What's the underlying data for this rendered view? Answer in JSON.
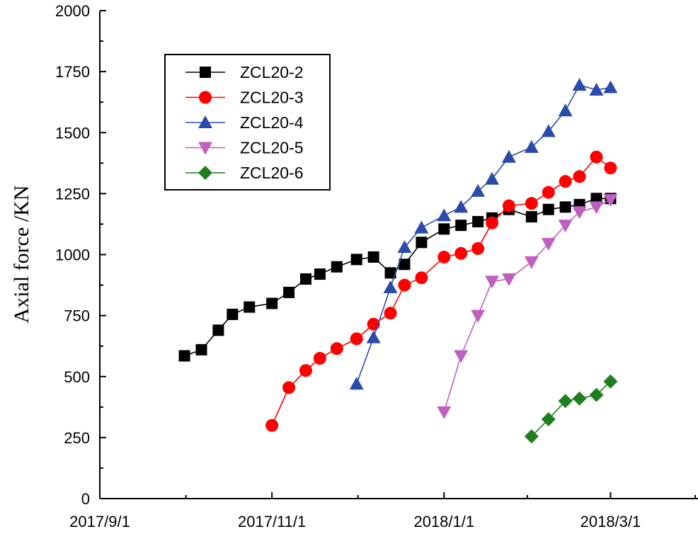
{
  "chart_data": {
    "type": "line",
    "title": "",
    "xlabel": "",
    "ylabel": "Axial force /KN",
    "x_is_date": true,
    "xlim": [
      "2017-09-01",
      "2018-04-01"
    ],
    "ylim": [
      0,
      2000
    ],
    "x_ticks": [
      {
        "date": "2017-09-01",
        "label": "2017/9/1"
      },
      {
        "date": "2017-11-01",
        "label": "2017/11/1"
      },
      {
        "date": "2018-01-01",
        "label": "2018/1/1"
      },
      {
        "date": "2018-03-01",
        "label": "2018/3/1"
      }
    ],
    "y_ticks": [
      0,
      250,
      500,
      750,
      1000,
      1250,
      1500,
      1750,
      2000
    ],
    "y_tick_labels": [
      "0",
      "250",
      "500",
      "750",
      "1000",
      "1250",
      "1500",
      "1750",
      "2000"
    ],
    "grid": false,
    "legend_position": "top-left",
    "series": [
      {
        "name": "ZCL20-2",
        "color": "#000000",
        "marker": "square",
        "x": [
          "2017-10-01",
          "2017-10-07",
          "2017-10-13",
          "2017-10-18",
          "2017-10-24",
          "2017-11-01",
          "2017-11-07",
          "2017-11-13",
          "2017-11-18",
          "2017-11-24",
          "2017-12-01",
          "2017-12-07",
          "2017-12-13",
          "2017-12-18",
          "2017-12-24",
          "2018-01-01",
          "2018-01-07",
          "2018-01-13",
          "2018-01-18",
          "2018-01-24",
          "2018-02-01",
          "2018-02-07",
          "2018-02-13",
          "2018-02-18",
          "2018-02-24",
          "2018-03-01"
        ],
        "values": [
          585,
          610,
          690,
          755,
          785,
          800,
          845,
          900,
          920,
          950,
          980,
          990,
          925,
          960,
          1050,
          1105,
          1120,
          1135,
          1150,
          1185,
          1155,
          1185,
          1195,
          1205,
          1230,
          1230
        ]
      },
      {
        "name": "ZCL20-3",
        "color": "#ff0000",
        "marker": "circle",
        "x": [
          "2017-11-01",
          "2017-11-07",
          "2017-11-13",
          "2017-11-18",
          "2017-11-24",
          "2017-12-01",
          "2017-12-07",
          "2017-12-13",
          "2017-12-18",
          "2017-12-24",
          "2018-01-01",
          "2018-01-07",
          "2018-01-13",
          "2018-01-18",
          "2018-01-24",
          "2018-02-01",
          "2018-02-07",
          "2018-02-13",
          "2018-02-18",
          "2018-02-24",
          "2018-03-01"
        ],
        "values": [
          300,
          455,
          525,
          575,
          615,
          655,
          715,
          760,
          875,
          905,
          990,
          1005,
          1025,
          1130,
          1200,
          1210,
          1255,
          1300,
          1320,
          1400,
          1355
        ]
      },
      {
        "name": "ZCL20-4",
        "color": "#2b4bab",
        "marker": "triangle-up",
        "x": [
          "2017-12-01",
          "2017-12-07",
          "2017-12-13",
          "2017-12-18",
          "2017-12-24",
          "2018-01-01",
          "2018-01-07",
          "2018-01-13",
          "2018-01-18",
          "2018-01-24",
          "2018-02-01",
          "2018-02-07",
          "2018-02-13",
          "2018-02-18",
          "2018-02-24",
          "2018-03-01"
        ],
        "values": [
          470,
          660,
          865,
          1030,
          1110,
          1160,
          1195,
          1260,
          1310,
          1400,
          1440,
          1505,
          1590,
          1695,
          1675,
          1685
        ]
      },
      {
        "name": "ZCL20-5",
        "color": "#bf5fbf",
        "marker": "triangle-down",
        "x": [
          "2018-01-01",
          "2018-01-07",
          "2018-01-13",
          "2018-01-18",
          "2018-01-24",
          "2018-02-01",
          "2018-02-07",
          "2018-02-13",
          "2018-02-18",
          "2018-02-24",
          "2018-03-01"
        ],
        "values": [
          355,
          585,
          750,
          890,
          900,
          970,
          1045,
          1120,
          1175,
          1195,
          1225
        ]
      },
      {
        "name": "ZCL20-6",
        "color": "#1f7f1f",
        "marker": "diamond",
        "x": [
          "2018-02-01",
          "2018-02-07",
          "2018-02-13",
          "2018-02-18",
          "2018-02-24",
          "2018-03-01"
        ],
        "values": [
          255,
          325,
          400,
          410,
          425,
          480
        ]
      }
    ]
  }
}
